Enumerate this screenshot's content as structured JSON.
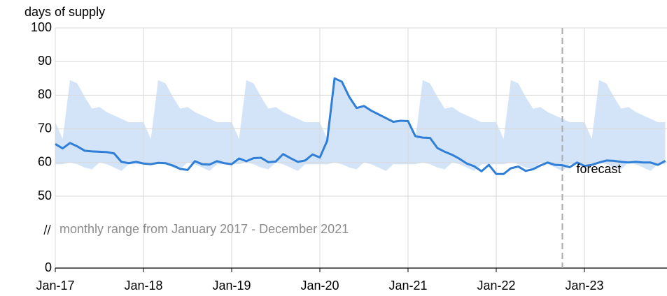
{
  "chart_data": {
    "type": "line",
    "y_title": "days of supply",
    "x": [
      "2017-01",
      "2017-02",
      "2017-03",
      "2017-04",
      "2017-05",
      "2017-06",
      "2017-07",
      "2017-08",
      "2017-09",
      "2017-10",
      "2017-11",
      "2017-12",
      "2018-01",
      "2018-02",
      "2018-03",
      "2018-04",
      "2018-05",
      "2018-06",
      "2018-07",
      "2018-08",
      "2018-09",
      "2018-10",
      "2018-11",
      "2018-12",
      "2019-01",
      "2019-02",
      "2019-03",
      "2019-04",
      "2019-05",
      "2019-06",
      "2019-07",
      "2019-08",
      "2019-09",
      "2019-10",
      "2019-11",
      "2019-12",
      "2020-01",
      "2020-02",
      "2020-03",
      "2020-04",
      "2020-05",
      "2020-06",
      "2020-07",
      "2020-08",
      "2020-09",
      "2020-10",
      "2020-11",
      "2020-12",
      "2021-01",
      "2021-02",
      "2021-03",
      "2021-04",
      "2021-05",
      "2021-06",
      "2021-07",
      "2021-08",
      "2021-09",
      "2021-10",
      "2021-11",
      "2021-12",
      "2022-01",
      "2022-02",
      "2022-03",
      "2022-04",
      "2022-05",
      "2022-06",
      "2022-07",
      "2022-08",
      "2022-09",
      "2022-10",
      "2022-11",
      "2022-12",
      "2023-01",
      "2023-02",
      "2023-03",
      "2023-04",
      "2023-05",
      "2023-06",
      "2023-07",
      "2023-08",
      "2023-09",
      "2023-10",
      "2023-11",
      "2023-12"
    ],
    "series": [
      {
        "color": "#2f7ed8",
        "values": [
          65.5,
          64.2,
          65.8,
          64.8,
          63.5,
          63.3,
          63.2,
          63.1,
          62.7,
          60.2,
          59.8,
          60.2,
          59.7,
          59.5,
          59.9,
          59.8,
          59.1,
          58.1,
          57.8,
          60.4,
          59.5,
          59.4,
          60.4,
          59.8,
          59.5,
          61.2,
          60.4,
          61.3,
          61.4,
          60.1,
          60.3,
          62.5,
          61.3,
          60.2,
          60.6,
          62.4,
          61.5,
          66.5,
          85,
          84,
          79.5,
          76.2,
          76.8,
          75.4,
          74.3,
          73.2,
          72.1,
          72.4,
          72.3,
          67.8,
          67.4,
          67.3,
          64.3,
          63.2,
          62.3,
          61.1,
          59.7,
          58.9,
          57.4,
          59.3,
          56.6,
          56.6,
          58.3,
          58.8,
          57.5,
          58,
          59.1,
          60,
          59.3,
          59.2,
          58.6,
          60,
          59,
          59.3,
          60,
          60.6,
          60.5,
          60.2,
          60,
          60.2,
          60,
          60,
          59.3,
          60.5
        ]
      }
    ],
    "band": {
      "color": "#d3e4f8",
      "upper": [
        72,
        67,
        84.5,
        83.5,
        79.5,
        76,
        76.5,
        75,
        74,
        73,
        72,
        72,
        72,
        67,
        84.5,
        83.5,
        79.5,
        76,
        76.5,
        75,
        74,
        73,
        72,
        72,
        72,
        67,
        84.5,
        83.5,
        79.5,
        76,
        76.5,
        75,
        74,
        73,
        72,
        72,
        72,
        67,
        84.5,
        83.5,
        79.5,
        76,
        76.5,
        75,
        74,
        73,
        72,
        72,
        72,
        67,
        84.5,
        83.5,
        79.5,
        76,
        76.5,
        75,
        74,
        73,
        72,
        72,
        72,
        67,
        84.5,
        83.5,
        79.5,
        76,
        76.5,
        75,
        74,
        73,
        72,
        72,
        72,
        67,
        84.5,
        83.5,
        79.5,
        76,
        76.5,
        75,
        74,
        73,
        72,
        72
      ],
      "lower": [
        59.5,
        59.5,
        60,
        59.5,
        58.5,
        58,
        60,
        59.5,
        58.5,
        57.5,
        59.5,
        59.5,
        59.5,
        59.5,
        60,
        59.5,
        58.5,
        58,
        60,
        59.5,
        58.5,
        57.5,
        59.5,
        59.5,
        59.5,
        59.5,
        60,
        59.5,
        58.5,
        58,
        60,
        59.5,
        58.5,
        57.5,
        59.5,
        59.5,
        59.5,
        59.5,
        60,
        59.5,
        58.5,
        58,
        60,
        59.5,
        58.5,
        57.5,
        59.5,
        59.5,
        59.5,
        59.5,
        60,
        59.5,
        58.5,
        58,
        60,
        59.5,
        58.5,
        57.5,
        59.5,
        59.5,
        59.5,
        59.5,
        60,
        59.5,
        58.5,
        58,
        60,
        59.5,
        58.5,
        57.5,
        59.5,
        59.5,
        59.5,
        59.5,
        60,
        59.5,
        58.5,
        58,
        60,
        59.5,
        58.5,
        57.5,
        59.5,
        59.5
      ]
    },
    "band_label": "monthly range from January 2017 - December 2021",
    "forecast_start": "2022-10",
    "forecast_label": "forecast",
    "xlim": [
      "2017-01",
      "2023-12"
    ],
    "xticks": [
      {
        "value": "2017-01",
        "label": "Jan-17"
      },
      {
        "value": "2018-01",
        "label": "Jan-18"
      },
      {
        "value": "2019-01",
        "label": "Jan-19"
      },
      {
        "value": "2020-01",
        "label": "Jan-20"
      },
      {
        "value": "2021-01",
        "label": "Jan-21"
      },
      {
        "value": "2022-01",
        "label": "Jan-22"
      },
      {
        "value": "2023-01",
        "label": "Jan-23"
      }
    ],
    "ylim": [
      0,
      100
    ],
    "y_break": [
      0,
      50
    ],
    "yticks": [
      0,
      50,
      60,
      70,
      80,
      90,
      100
    ],
    "grid": true
  }
}
